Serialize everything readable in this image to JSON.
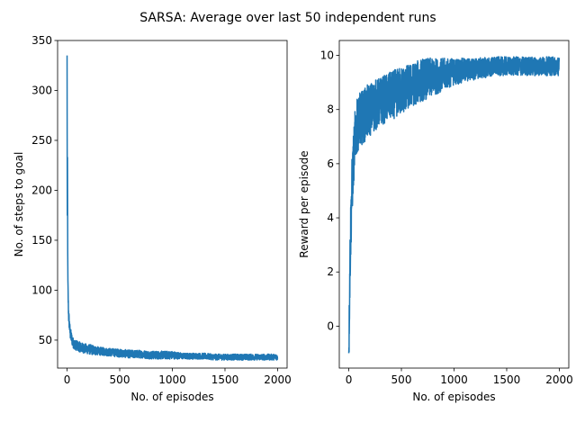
{
  "figure": {
    "title": "SARSA: Average over last 50 independent runs"
  },
  "chart_data": [
    {
      "type": "line",
      "xlabel": "No. of episodes",
      "ylabel": "No. of steps to goal",
      "xlim": [
        -90,
        2090
      ],
      "ylim": [
        22,
        350
      ],
      "xticks": [
        0,
        500,
        1000,
        1500,
        2000
      ],
      "xtick_labels": [
        "0",
        "500",
        "1000",
        "1500",
        "2000"
      ],
      "yticks": [
        50,
        100,
        150,
        200,
        250,
        300,
        350
      ],
      "ytick_labels": [
        "50",
        "100",
        "150",
        "200",
        "250",
        "300",
        "350"
      ],
      "grid": false,
      "color": "#1f77b4",
      "series": [
        {
          "x": [
            0,
            2,
            4,
            6,
            8,
            10,
            12,
            15,
            20,
            25,
            30,
            40,
            50,
            60,
            80,
            100,
            150,
            200,
            250,
            300,
            400,
            500,
            600,
            700,
            800,
            900,
            1000,
            1100,
            1200,
            1300,
            1400,
            1500,
            1600,
            1700,
            1800,
            1900,
            1999
          ],
          "y": [
            335,
            175,
            233,
            140,
            110,
            95,
            85,
            75,
            68,
            62,
            57,
            53,
            49,
            47,
            45,
            44,
            42,
            41,
            40,
            39,
            38,
            37,
            36,
            36,
            35,
            35,
            35,
            34,
            34,
            34,
            33,
            33,
            33,
            33,
            33,
            33,
            33
          ],
          "noise": [
            0,
            0,
            0,
            0,
            0,
            8,
            8,
            8,
            7,
            6,
            6,
            6,
            5,
            5,
            5,
            5,
            5,
            5,
            5,
            4,
            4,
            4,
            4,
            4,
            4,
            4,
            4,
            3,
            3,
            3,
            3,
            3,
            3,
            3,
            3,
            3,
            3
          ]
        }
      ]
    },
    {
      "type": "line",
      "xlabel": "No. of episodes",
      "ylabel": "Reward per episode",
      "xlim": [
        -90,
        2090
      ],
      "ylim": [
        -1.55,
        10.55
      ],
      "xticks": [
        0,
        500,
        1000,
        1500,
        2000
      ],
      "xtick_labels": [
        "0",
        "500",
        "1000",
        "1500",
        "2000"
      ],
      "yticks": [
        0,
        2,
        4,
        6,
        8,
        10
      ],
      "ytick_labels": [
        "0",
        "2",
        "4",
        "6",
        "8",
        "10"
      ],
      "grid": false,
      "color": "#1f77b4",
      "series": [
        {
          "x": [
            0,
            3,
            6,
            10,
            15,
            20,
            25,
            30,
            40,
            50,
            60,
            80,
            100,
            150,
            200,
            300,
            400,
            500,
            600,
            700,
            800,
            900,
            1000,
            1200,
            1400,
            1600,
            1800,
            1999
          ],
          "y": [
            -1.0,
            -0.3,
            0.8,
            2.0,
            3.0,
            3.8,
            4.5,
            5.0,
            5.8,
            6.4,
            7.0,
            7.4,
            7.6,
            7.8,
            8.0,
            8.3,
            8.5,
            8.7,
            8.9,
            9.1,
            9.2,
            9.3,
            9.4,
            9.5,
            9.6,
            9.6,
            9.6,
            9.6
          ],
          "noise": [
            0,
            0.8,
            1.0,
            1.2,
            1.2,
            1.2,
            1.2,
            1.2,
            1.1,
            1.0,
            1.0,
            1.0,
            1.0,
            1.0,
            1.0,
            0.9,
            0.9,
            0.9,
            0.8,
            0.8,
            0.7,
            0.6,
            0.5,
            0.4,
            0.35,
            0.35,
            0.35,
            0.35
          ]
        }
      ]
    }
  ]
}
